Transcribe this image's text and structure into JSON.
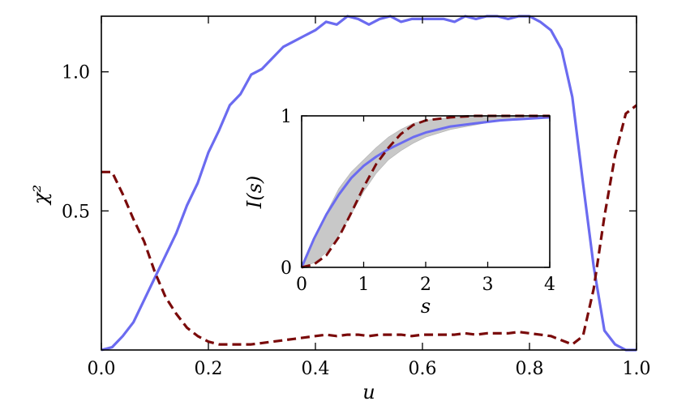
{
  "chart_data": [
    {
      "type": "line",
      "xlabel": "u",
      "ylabel": "χ²",
      "xlim": [
        0.0,
        1.0
      ],
      "ylim": [
        0.0,
        1.2
      ],
      "xticks": [
        "0.0",
        "0.2",
        "0.4",
        "0.6",
        "0.8",
        "1.0"
      ],
      "yticks": [
        "0.5",
        "1.0"
      ],
      "grid": false,
      "series": [
        {
          "color": "#6b6bf0",
          "style": "solid",
          "x": [
            0.0,
            0.02,
            0.04,
            0.06,
            0.08,
            0.1,
            0.12,
            0.14,
            0.16,
            0.18,
            0.2,
            0.22,
            0.24,
            0.26,
            0.28,
            0.3,
            0.32,
            0.34,
            0.36,
            0.38,
            0.4,
            0.42,
            0.44,
            0.46,
            0.48,
            0.5,
            0.52,
            0.54,
            0.56,
            0.58,
            0.6,
            0.62,
            0.64,
            0.66,
            0.68,
            0.7,
            0.72,
            0.74,
            0.76,
            0.78,
            0.8,
            0.82,
            0.84,
            0.86,
            0.88,
            0.9,
            0.92,
            0.94,
            0.96,
            0.98,
            1.0
          ],
          "y": [
            0.0,
            0.01,
            0.05,
            0.1,
            0.18,
            0.26,
            0.34,
            0.42,
            0.52,
            0.6,
            0.71,
            0.79,
            0.88,
            0.92,
            0.99,
            1.01,
            1.05,
            1.09,
            1.11,
            1.13,
            1.15,
            1.18,
            1.17,
            1.2,
            1.19,
            1.17,
            1.19,
            1.2,
            1.18,
            1.19,
            1.19,
            1.19,
            1.19,
            1.18,
            1.2,
            1.19,
            1.2,
            1.2,
            1.19,
            1.2,
            1.2,
            1.18,
            1.15,
            1.08,
            0.91,
            0.6,
            0.3,
            0.07,
            0.02,
            0.0,
            0.0
          ]
        },
        {
          "color": "#7a0a0a",
          "style": "dashed",
          "x": [
            0.0,
            0.02,
            0.04,
            0.06,
            0.08,
            0.1,
            0.12,
            0.14,
            0.16,
            0.18,
            0.2,
            0.22,
            0.24,
            0.26,
            0.28,
            0.3,
            0.32,
            0.34,
            0.36,
            0.38,
            0.4,
            0.42,
            0.44,
            0.46,
            0.48,
            0.5,
            0.52,
            0.54,
            0.56,
            0.58,
            0.6,
            0.62,
            0.64,
            0.66,
            0.68,
            0.7,
            0.72,
            0.74,
            0.76,
            0.78,
            0.8,
            0.82,
            0.84,
            0.86,
            0.88,
            0.9,
            0.92,
            0.94,
            0.96,
            0.98,
            1.0
          ],
          "y": [
            0.64,
            0.64,
            0.56,
            0.47,
            0.39,
            0.28,
            0.19,
            0.13,
            0.08,
            0.05,
            0.03,
            0.02,
            0.02,
            0.02,
            0.02,
            0.025,
            0.03,
            0.035,
            0.04,
            0.045,
            0.05,
            0.055,
            0.05,
            0.055,
            0.055,
            0.05,
            0.055,
            0.055,
            0.055,
            0.05,
            0.055,
            0.055,
            0.055,
            0.055,
            0.06,
            0.055,
            0.06,
            0.06,
            0.06,
            0.065,
            0.06,
            0.055,
            0.05,
            0.035,
            0.02,
            0.05,
            0.22,
            0.48,
            0.7,
            0.85,
            0.88
          ]
        }
      ]
    },
    {
      "type": "line",
      "xlabel": "s",
      "ylabel": "I(s)",
      "xlim": [
        0,
        4
      ],
      "ylim": [
        0,
        1
      ],
      "xticks": [
        "0",
        "1",
        "2",
        "3",
        "4"
      ],
      "yticks": [
        "0",
        "1"
      ],
      "grid": false,
      "series": [
        {
          "color": "#c8c8c8",
          "style": "band",
          "x": [
            0.0,
            0.2,
            0.4,
            0.6,
            0.8,
            1.0,
            1.2,
            1.4,
            1.6,
            1.8,
            2.0,
            2.4,
            2.8,
            3.2,
            3.6,
            4.0
          ],
          "lower": [
            0.0,
            0.03,
            0.1,
            0.21,
            0.35,
            0.5,
            0.62,
            0.71,
            0.77,
            0.82,
            0.86,
            0.91,
            0.94,
            0.97,
            0.98,
            0.99
          ],
          "upper": [
            0.0,
            0.18,
            0.36,
            0.52,
            0.63,
            0.71,
            0.79,
            0.86,
            0.91,
            0.95,
            0.97,
            0.99,
            1.0,
            1.0,
            1.0,
            1.0
          ]
        },
        {
          "color": "#6b6bf0",
          "style": "solid",
          "x": [
            0.0,
            0.2,
            0.4,
            0.6,
            0.8,
            1.0,
            1.2,
            1.4,
            1.6,
            1.8,
            2.0,
            2.4,
            2.8,
            3.2,
            3.6,
            4.0
          ],
          "y": [
            0.0,
            0.19,
            0.35,
            0.48,
            0.59,
            0.67,
            0.73,
            0.78,
            0.82,
            0.86,
            0.89,
            0.93,
            0.95,
            0.97,
            0.98,
            0.99
          ]
        },
        {
          "color": "#7a0a0a",
          "style": "dashed",
          "x": [
            0.0,
            0.2,
            0.4,
            0.6,
            0.8,
            1.0,
            1.2,
            1.4,
            1.6,
            1.8,
            2.0,
            2.4,
            2.8,
            3.2,
            3.6,
            4.0
          ],
          "y": [
            0.0,
            0.02,
            0.08,
            0.2,
            0.36,
            0.53,
            0.68,
            0.79,
            0.88,
            0.94,
            0.97,
            0.99,
            1.0,
            1.0,
            1.0,
            1.0
          ]
        }
      ]
    }
  ]
}
